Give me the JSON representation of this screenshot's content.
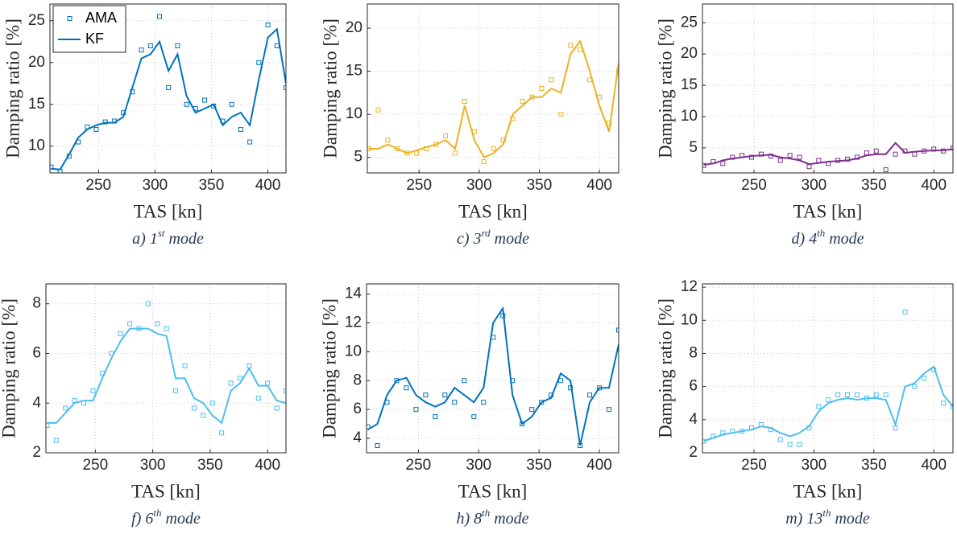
{
  "chart_data": [
    {
      "type": "line",
      "caption": {
        "label": "a) 1",
        "sup": "st",
        "rest": " mode"
      },
      "xlabel": "TAS [kn]",
      "ylabel": "Damping ratio [%]",
      "xlim": [
        207,
        416
      ],
      "xticks": [
        250,
        300,
        350,
        400
      ],
      "ylim": [
        6.8,
        27
      ],
      "yticks": [
        10,
        15,
        20,
        25
      ],
      "grid": true,
      "legend": "upper left",
      "x": [
        208,
        216,
        224,
        232,
        240,
        248,
        256,
        264,
        272,
        280,
        288,
        296,
        304,
        312,
        320,
        328,
        336,
        344,
        352,
        360,
        368,
        376,
        384,
        392,
        400,
        408,
        416
      ],
      "series": [
        {
          "name": "AMA",
          "mode": "markers",
          "color": "#0072BD",
          "values": [
            7.5,
            7.0,
            8.8,
            10.5,
            12.3,
            12.0,
            12.9,
            13.0,
            14,
            16.5,
            21.5,
            22,
            25.5,
            17,
            22,
            15,
            14.5,
            15.5,
            14.8,
            13,
            15,
            12,
            10.5,
            20,
            24.5,
            22,
            17
          ]
        },
        {
          "name": "KF",
          "mode": "line",
          "color": "#0072BD",
          "values": [
            7.3,
            7.2,
            9,
            11,
            12,
            12.5,
            12.8,
            12.8,
            13.5,
            17,
            20.5,
            21,
            22.5,
            19,
            21,
            16,
            14,
            14.5,
            15,
            12.5,
            13.5,
            14,
            12.5,
            18,
            23,
            24,
            17.5
          ]
        }
      ]
    },
    {
      "type": "line",
      "caption": {
        "label": "c) 3",
        "sup": "rd",
        "rest": " mode"
      },
      "xlabel": "TAS [kn]",
      "ylabel": "Damping ratio [%]",
      "xlim": [
        207,
        416
      ],
      "xticks": [
        250,
        300,
        350,
        400
      ],
      "ylim": [
        3.2,
        22.8
      ],
      "yticks": [
        5,
        10,
        15,
        20
      ],
      "grid": true,
      "x": [
        208,
        216,
        224,
        232,
        240,
        248,
        256,
        264,
        272,
        280,
        288,
        296,
        304,
        312,
        320,
        328,
        336,
        344,
        352,
        360,
        368,
        376,
        384,
        392,
        400,
        408,
        416
      ],
      "series": [
        {
          "mode": "markers",
          "color": "#EDB120",
          "values": [
            6,
            10.5,
            7,
            6,
            5.5,
            5.5,
            6,
            6.5,
            7.5,
            5.5,
            11.5,
            8,
            4.5,
            6,
            7,
            9.5,
            11.5,
            12,
            13,
            14,
            10,
            18,
            17.5,
            14,
            12,
            9,
            15
          ]
        },
        {
          "mode": "line",
          "color": "#EDB120",
          "values": [
            6,
            6,
            6.5,
            6,
            5.5,
            5.8,
            6.2,
            6.5,
            7,
            6,
            11,
            7,
            5,
            5.5,
            6.5,
            10,
            11,
            12,
            12,
            13,
            12.5,
            17,
            18.5,
            15,
            11,
            8,
            16
          ]
        }
      ]
    },
    {
      "type": "line",
      "caption": {
        "label": "d) 4",
        "sup": "th",
        "rest": " mode"
      },
      "xlabel": "TAS [kn]",
      "ylabel": "Damping ratio [%]",
      "xlim": [
        207,
        416
      ],
      "xticks": [
        250,
        300,
        350,
        400
      ],
      "ylim": [
        1,
        28
      ],
      "yticks": [
        5,
        10,
        15,
        20,
        25
      ],
      "grid": true,
      "x": [
        208,
        216,
        224,
        232,
        240,
        248,
        256,
        264,
        272,
        280,
        288,
        296,
        304,
        312,
        320,
        328,
        336,
        344,
        352,
        360,
        368,
        376,
        384,
        392,
        400,
        408,
        416
      ],
      "series": [
        {
          "mode": "markers",
          "color": "#7E2F8E",
          "values": [
            2.2,
            2.8,
            2.5,
            3.5,
            3.8,
            3.5,
            4,
            3.7,
            3,
            3.8,
            3.5,
            2,
            3,
            2.5,
            3,
            3.2,
            3.5,
            4.2,
            4.5,
            1.5,
            4,
            4.5,
            4,
            4.5,
            4.8,
            4.5,
            5
          ]
        },
        {
          "mode": "line",
          "color": "#7E2F8E",
          "values": [
            2.3,
            2.5,
            3,
            3.3,
            3.5,
            3.7,
            3.8,
            3.9,
            3.5,
            3.3,
            3,
            2.4,
            2.6,
            2.8,
            2.9,
            3,
            3.3,
            3.8,
            4,
            4,
            5.8,
            4.2,
            4.4,
            4.5,
            4.6,
            4.6,
            4.8
          ]
        }
      ]
    },
    {
      "type": "line",
      "caption": {
        "label": "f) 6",
        "sup": "th",
        "rest": " mode"
      },
      "xlabel": "TAS [kn]",
      "ylabel": "Damping ratio [%]",
      "xlim": [
        207,
        416
      ],
      "xticks": [
        250,
        300,
        350,
        400
      ],
      "ylim": [
        2,
        8.8
      ],
      "yticks": [
        2,
        4,
        6,
        8
      ],
      "grid": true,
      "x": [
        208,
        216,
        224,
        232,
        240,
        248,
        256,
        264,
        272,
        280,
        288,
        296,
        304,
        312,
        320,
        328,
        336,
        344,
        352,
        360,
        368,
        376,
        384,
        392,
        400,
        408,
        416
      ],
      "series": [
        {
          "mode": "markers",
          "color": "#4DBEEE",
          "values": [
            3.1,
            2.5,
            3.8,
            4.1,
            4,
            4.5,
            5.2,
            6,
            6.8,
            7.2,
            7,
            8,
            7.2,
            7,
            4.5,
            5.5,
            3.8,
            3.5,
            4,
            2.8,
            4.8,
            5,
            5.5,
            4.2,
            4.8,
            3.8,
            4.5
          ]
        },
        {
          "mode": "line",
          "color": "#4DBEEE",
          "values": [
            3.2,
            3.2,
            3.6,
            4,
            4.1,
            4.1,
            5,
            5.8,
            6.5,
            7,
            7,
            7,
            6.8,
            6.7,
            5,
            5,
            4.2,
            4,
            3.5,
            3.2,
            4.5,
            4.8,
            5.4,
            4.7,
            4.7,
            4.1,
            4
          ]
        }
      ]
    },
    {
      "type": "line",
      "caption": {
        "label": "h) 8",
        "sup": "th",
        "rest": " mode"
      },
      "xlabel": "TAS [kn]",
      "ylabel": "Damping ratio [%]",
      "xlim": [
        207,
        416
      ],
      "xticks": [
        250,
        300,
        350,
        400
      ],
      "ylim": [
        3,
        14.7
      ],
      "yticks": [
        4,
        6,
        8,
        10,
        12,
        14
      ],
      "grid": true,
      "x": [
        208,
        216,
        224,
        232,
        240,
        248,
        256,
        264,
        272,
        280,
        288,
        296,
        304,
        312,
        320,
        328,
        336,
        344,
        352,
        360,
        368,
        376,
        384,
        392,
        400,
        408,
        416
      ],
      "series": [
        {
          "mode": "markers",
          "color": "#0072BD",
          "values": [
            4.8,
            3.5,
            6.5,
            8,
            7.5,
            6,
            7,
            5.5,
            7,
            6.5,
            8,
            5.5,
            6.5,
            11,
            12.5,
            8,
            5,
            6,
            6.5,
            7,
            8,
            7.5,
            3.5,
            7,
            7.5,
            6,
            11.5
          ]
        },
        {
          "mode": "line",
          "color": "#0072BD",
          "values": [
            4.6,
            5,
            7,
            8,
            8.2,
            7,
            6.5,
            6.2,
            6.5,
            7.5,
            7,
            6.5,
            7.5,
            12,
            13,
            7,
            5,
            5.5,
            6.5,
            6.8,
            8.5,
            8,
            3.5,
            6.5,
            7.5,
            7.5,
            10.5
          ]
        }
      ]
    },
    {
      "type": "line",
      "caption": {
        "label": "m) 13",
        "sup": "th",
        "rest": " mode"
      },
      "xlabel": "TAS [kn]",
      "ylabel": "Damping ratio [%]",
      "xlim": [
        207,
        416
      ],
      "xticks": [
        250,
        300,
        350,
        400
      ],
      "ylim": [
        2,
        12.2
      ],
      "yticks": [
        2,
        4,
        6,
        8,
        10,
        12
      ],
      "grid": true,
      "x": [
        208,
        216,
        224,
        232,
        240,
        248,
        256,
        264,
        272,
        280,
        288,
        296,
        304,
        312,
        320,
        328,
        336,
        344,
        352,
        360,
        368,
        376,
        384,
        392,
        400,
        408,
        416
      ],
      "series": [
        {
          "mode": "markers",
          "color": "#4DBEEE",
          "values": [
            2.7,
            3,
            3.2,
            3.3,
            3.3,
            3.5,
            3.7,
            3.4,
            2.8,
            2.5,
            2.5,
            3.5,
            4.8,
            5.2,
            5.5,
            5.5,
            5.5,
            5.3,
            5.5,
            5.5,
            3.5,
            10.5,
            6,
            6.5,
            7,
            5,
            4.8
          ]
        },
        {
          "mode": "line",
          "color": "#4DBEEE",
          "values": [
            2.7,
            2.9,
            3.1,
            3.2,
            3.3,
            3.4,
            3.6,
            3.5,
            3.2,
            3,
            3.2,
            3.6,
            4.5,
            5,
            5.2,
            5.3,
            5.2,
            5.3,
            5.3,
            5.2,
            3.7,
            6,
            6.2,
            6.8,
            7.2,
            5.5,
            4.8
          ]
        }
      ]
    }
  ]
}
